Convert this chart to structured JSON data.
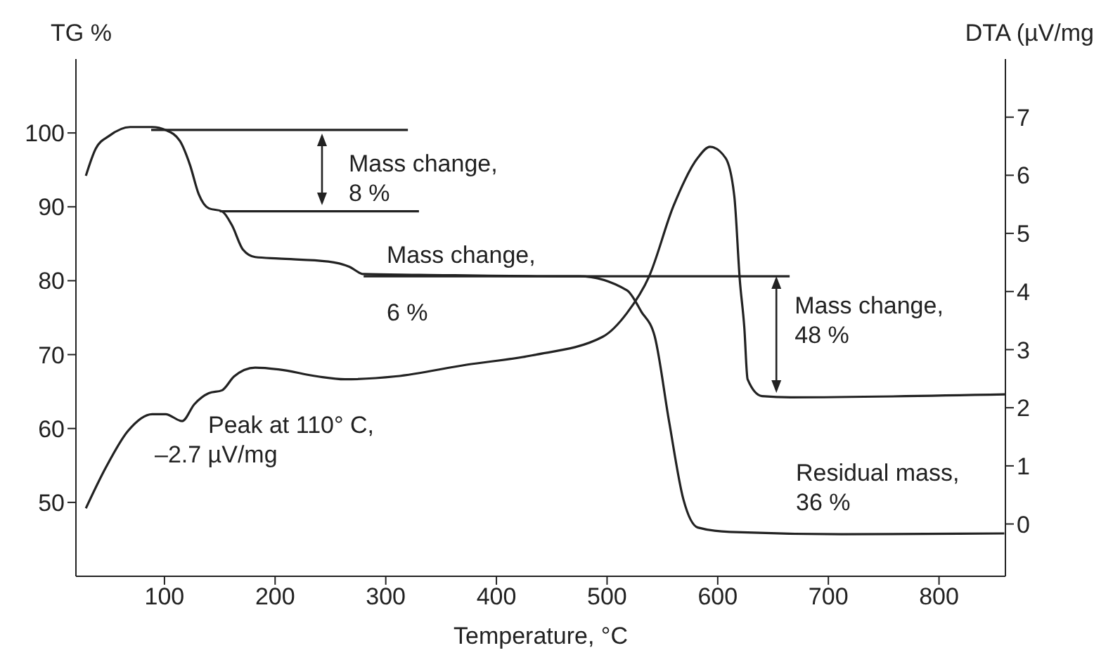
{
  "chart_data": {
    "type": "line",
    "xlabel": "Temperature, °C",
    "ylabel": "TG %",
    "y2label": "DTA (µV/mg",
    "xlim": [
      20,
      860
    ],
    "xticks": [
      100,
      200,
      300,
      400,
      500,
      600,
      700,
      800
    ],
    "ylim": [
      40,
      110
    ],
    "yticks": [
      50,
      60,
      70,
      80,
      90,
      100
    ],
    "y2lim": [
      -0.9,
      8.0
    ],
    "y2ticks": [
      0,
      1,
      2,
      3,
      4,
      5,
      6,
      7
    ],
    "marker": "none",
    "line_style": "solid",
    "grid": false,
    "legend": false,
    "series": [
      {
        "color": "#222222",
        "x": [
          29,
          38,
          50,
          69,
          89,
          101,
          114,
          123,
          131,
          140,
          152,
          161,
          171,
          182,
          203,
          248,
          267,
          280,
          330,
          458,
          475,
          518,
          531,
          543,
          556,
          569,
          582,
          611,
          712,
          859
        ],
        "values": [
          94.2,
          97.9,
          99.6,
          100.8,
          100.8,
          100.4,
          98.9,
          95.7,
          91.7,
          89.8,
          89.4,
          87.5,
          84.2,
          83.2,
          83,
          82.6,
          81.9,
          80.9,
          80.8,
          80.6,
          80.6,
          78.7,
          75.8,
          72.5,
          61,
          50.4,
          46.6,
          46,
          45.7,
          45.8
        ]
      },
      {
        "axis": "y2",
        "color": "#222222",
        "x": [
          29,
          47,
          67,
          89,
          101,
          116,
          127,
          140,
          152,
          163,
          182,
          203,
          238,
          263,
          309,
          373,
          432,
          496,
          518,
          538,
          560,
          582,
          593,
          607,
          615,
          620,
          624,
          627,
          640,
          666,
          860
        ],
        "values": [
          0.27,
          0.97,
          1.6,
          1.89,
          1.89,
          1.77,
          2.06,
          2.25,
          2.3,
          2.54,
          2.69,
          2.66,
          2.54,
          2.49,
          2.54,
          2.74,
          2.9,
          3.22,
          3.63,
          4.26,
          5.47,
          6.3,
          6.49,
          6.3,
          5.64,
          4.19,
          3.39,
          2.49,
          2.2,
          2.18,
          2.23
        ]
      },
      {
        "color": "#222222",
        "x": [
          88,
          320
        ],
        "values": [
          100.4,
          100.4
        ]
      },
      {
        "color": "#222222",
        "x": [
          150,
          330
        ],
        "values": [
          89.4,
          89.4
        ]
      },
      {
        "color": "#222222",
        "x": [
          280,
          665
        ],
        "values": [
          80.6,
          80.6
        ]
      }
    ],
    "annotations": [
      "Mass change,\n8 %",
      "Mass change,",
      "6 %",
      "Peak at 110° C,\n–2.7 µV/mg",
      {
        "text": "Mass change,\n48 %",
        "x": 653,
        "y": 80.6
      },
      "Residual mass,\n36 %"
    ]
  }
}
